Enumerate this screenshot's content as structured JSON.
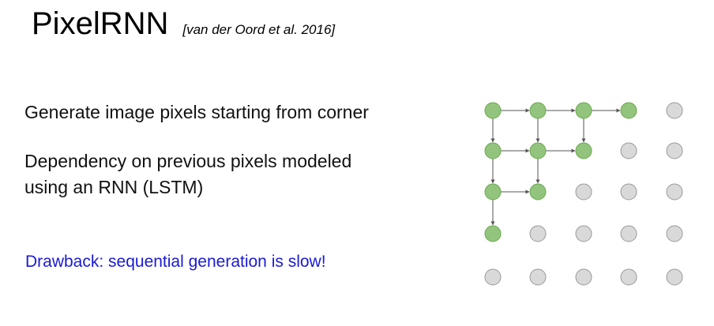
{
  "slide": {
    "title": "PixelRNN",
    "citation": "[van der Oord et al. 2016]",
    "point1": "Generate image pixels starting from corner",
    "point2_line1": "Dependency on previous pixels modeled",
    "point2_line2": "using an RNN (LSTM)",
    "drawback": "Drawback: sequential generation is slow!"
  },
  "colors": {
    "generated_fill": "#93c47d",
    "generated_stroke": "#6aa84f",
    "pending_fill": "#d9d9d9",
    "pending_stroke": "#999999",
    "arrow": "#555555",
    "drawback_text": "#1a1ad6"
  },
  "pixel_grid": {
    "rows": 5,
    "cols": 5,
    "generated": [
      [
        0,
        0
      ],
      [
        0,
        1
      ],
      [
        0,
        2
      ],
      [
        0,
        3
      ],
      [
        1,
        0
      ],
      [
        1,
        1
      ],
      [
        1,
        2
      ],
      [
        2,
        0
      ],
      [
        2,
        1
      ],
      [
        3,
        0
      ]
    ],
    "dependencies": [
      [
        [
          0,
          0
        ],
        [
          0,
          1
        ]
      ],
      [
        [
          0,
          1
        ],
        [
          0,
          2
        ]
      ],
      [
        [
          0,
          2
        ],
        [
          0,
          3
        ]
      ],
      [
        [
          0,
          0
        ],
        [
          1,
          0
        ]
      ],
      [
        [
          0,
          1
        ],
        [
          1,
          1
        ]
      ],
      [
        [
          0,
          2
        ],
        [
          1,
          2
        ]
      ],
      [
        [
          1,
          0
        ],
        [
          1,
          1
        ]
      ],
      [
        [
          1,
          1
        ],
        [
          1,
          2
        ]
      ],
      [
        [
          1,
          0
        ],
        [
          2,
          0
        ]
      ],
      [
        [
          1,
          1
        ],
        [
          2,
          1
        ]
      ],
      [
        [
          2,
          0
        ],
        [
          2,
          1
        ]
      ],
      [
        [
          2,
          0
        ],
        [
          3,
          0
        ]
      ]
    ]
  }
}
